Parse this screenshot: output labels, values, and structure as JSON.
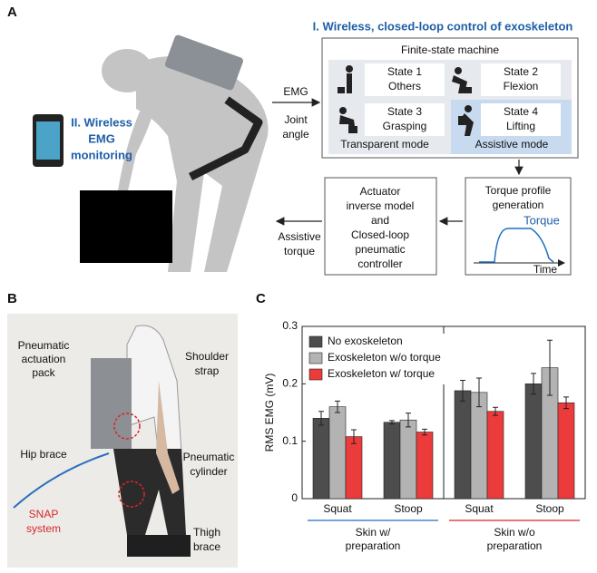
{
  "panel_labels": [
    "A",
    "B",
    "C"
  ],
  "panel_a": {
    "title": "I. Wireless, closed-loop control of exoskeleton",
    "fsm_title": "Finite-state machine",
    "states": [
      {
        "name": "State 1",
        "phase": "Others"
      },
      {
        "name": "State 2",
        "phase": "Flexion"
      },
      {
        "name": "State 3",
        "phase": "Grasping"
      },
      {
        "name": "State 4",
        "phase": "Lifting"
      }
    ],
    "modes": [
      "Transparent mode",
      "Assistive mode"
    ],
    "emg": "EMG",
    "joint_angle": [
      "Joint",
      "angle"
    ],
    "torque_box": [
      "Torque profile",
      "generation"
    ],
    "torque_curve": "Torque",
    "time_axis": "Time",
    "controller": [
      "Actuator",
      "inverse model",
      "and",
      "Closed-loop",
      "pneumatic",
      "controller"
    ],
    "assistive_torque": [
      "Assistive",
      "torque"
    ],
    "monitoring": [
      "II. Wireless",
      "EMG",
      "monitoring"
    ]
  },
  "panel_b": {
    "labels": {
      "pack": [
        "Pneumatic",
        "actuation",
        "pack"
      ],
      "strap": [
        "Shoulder",
        "strap"
      ],
      "hip": [
        "Hip brace"
      ],
      "cylinder": [
        "Pneumatic",
        "cylinder"
      ],
      "snap": [
        "SNAP",
        "system"
      ],
      "thigh": [
        "Thigh",
        "brace"
      ]
    }
  },
  "chart_data": {
    "type": "bar",
    "ylabel": "RMS EMG (mV)",
    "categories": [
      "Squat",
      "Stoop",
      "Squat",
      "Stoop"
    ],
    "groups": [
      {
        "label": [
          "Skin w/",
          "preparation"
        ],
        "color": "#1f6fbf"
      },
      {
        "label": [
          "Skin w/o",
          "preparation"
        ],
        "color": "#d8262b"
      }
    ],
    "series": [
      {
        "name": "No exoskeleton",
        "color": "#4d4d4d",
        "values": [
          0.14,
          0.133,
          0.188,
          0.2
        ],
        "errors": [
          0.012,
          0.003,
          0.018,
          0.018
        ]
      },
      {
        "name": "Exoskeleton w/o torque",
        "color": "#b3b3b3",
        "values": [
          0.16,
          0.137,
          0.185,
          0.228
        ],
        "errors": [
          0.01,
          0.012,
          0.025,
          0.048
        ]
      },
      {
        "name": "Exoskeleton w/ torque",
        "color": "#ec3b3b",
        "values": [
          0.108,
          0.116,
          0.152,
          0.167
        ],
        "errors": [
          0.012,
          0.005,
          0.007,
          0.01
        ]
      }
    ],
    "ylim": [
      0,
      0.3
    ],
    "yticks": [
      0,
      0.1,
      0.2,
      0.3
    ],
    "legend": "upper left"
  }
}
